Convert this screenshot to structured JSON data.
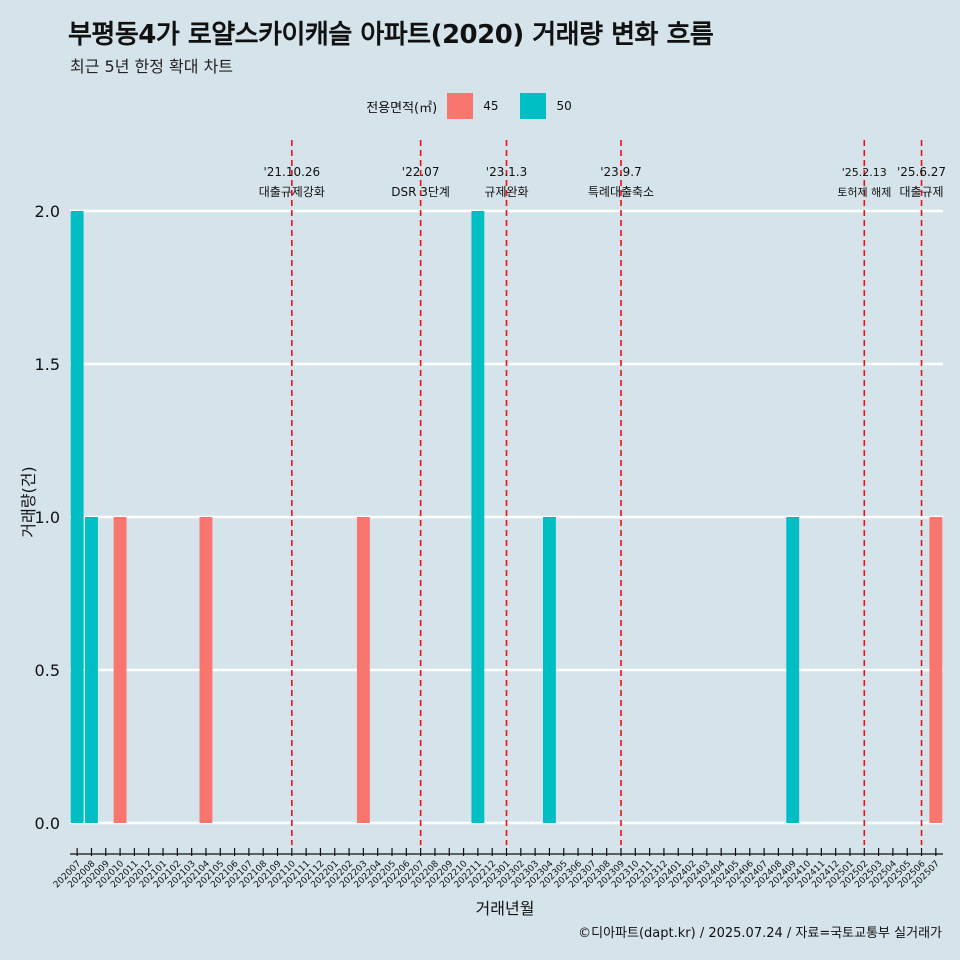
{
  "chart_data": {
    "type": "bar",
    "title": "부평동4가 로얄스카이캐슬 아파트(2020) 거래량 변화 흐름",
    "subtitle": "최근 5년 한정 확대 차트",
    "xlabel": "거래년월",
    "ylabel": "거래량(건)",
    "ylim": [
      0,
      2
    ],
    "yticks": [
      "0.0",
      "0.5",
      "1.0",
      "1.5",
      "2.0"
    ],
    "grid": true,
    "legend": {
      "title": "전용면적(㎡)",
      "placement": "top"
    },
    "categories": [
      "202007",
      "202008",
      "202009",
      "202010",
      "202011",
      "202012",
      "202101",
      "202102",
      "202103",
      "202104",
      "202105",
      "202106",
      "202107",
      "202108",
      "202109",
      "202110",
      "202111",
      "202112",
      "202201",
      "202202",
      "202203",
      "202204",
      "202205",
      "202206",
      "202207",
      "202208",
      "202209",
      "202210",
      "202211",
      "202212",
      "202301",
      "202302",
      "202303",
      "202304",
      "202305",
      "202306",
      "202307",
      "202308",
      "202309",
      "202310",
      "202311",
      "202312",
      "202401",
      "202402",
      "202403",
      "202404",
      "202405",
      "202406",
      "202407",
      "202408",
      "202409",
      "202410",
      "202411",
      "202412",
      "202501",
      "202502",
      "202503",
      "202504",
      "202505",
      "202506",
      "202507"
    ],
    "series": [
      {
        "name": "45",
        "color": "#f8766d",
        "values": [
          0,
          0,
          0,
          1,
          0,
          0,
          0,
          0,
          0,
          1,
          0,
          0,
          0,
          0,
          0,
          0,
          0,
          0,
          0,
          0,
          1,
          0,
          0,
          0,
          0,
          0,
          0,
          0,
          0,
          0,
          0,
          0,
          0,
          0,
          0,
          0,
          0,
          0,
          0,
          0,
          0,
          0,
          0,
          0,
          0,
          0,
          0,
          0,
          0,
          0,
          0,
          0,
          0,
          0,
          0,
          0,
          0,
          0,
          0,
          0,
          1
        ]
      },
      {
        "name": "50",
        "color": "#00bfc4",
        "values": [
          2,
          1,
          0,
          0,
          0,
          0,
          0,
          0,
          0,
          0,
          0,
          0,
          0,
          0,
          0,
          0,
          0,
          0,
          0,
          0,
          0,
          0,
          0,
          0,
          0,
          0,
          0,
          0,
          2,
          0,
          0,
          0,
          0,
          1,
          0,
          0,
          0,
          0,
          0,
          0,
          0,
          0,
          0,
          0,
          0,
          0,
          0,
          0,
          0,
          0,
          1,
          0,
          0,
          0,
          0,
          0,
          0,
          0,
          0,
          0,
          0
        ]
      }
    ],
    "annotations": [
      {
        "date": "'21.10.26",
        "label": "대출규제강화",
        "x": "202110",
        "color": "#ee1111"
      },
      {
        "date": "'22.07",
        "label": "DSR 3단계",
        "x": "202207",
        "color": "#ee1111"
      },
      {
        "date": "'23.1.3",
        "label": "규제완화",
        "x": "202301",
        "color": "#ee1111"
      },
      {
        "date": "'23.9.7",
        "label": "특례대출축소",
        "x": "202309",
        "color": "#ee1111"
      },
      {
        "date": "'25.2.13",
        "label": "토허제 해제",
        "x": "202502",
        "color": "#ee1111"
      },
      {
        "date": "'25.6.27",
        "label": "대출규제",
        "x": "202506",
        "color": "#ee1111"
      }
    ]
  },
  "caption": "©디아파트(dapt.kr) / 2025.07.24 / 자료=국토교통부 실거래가"
}
